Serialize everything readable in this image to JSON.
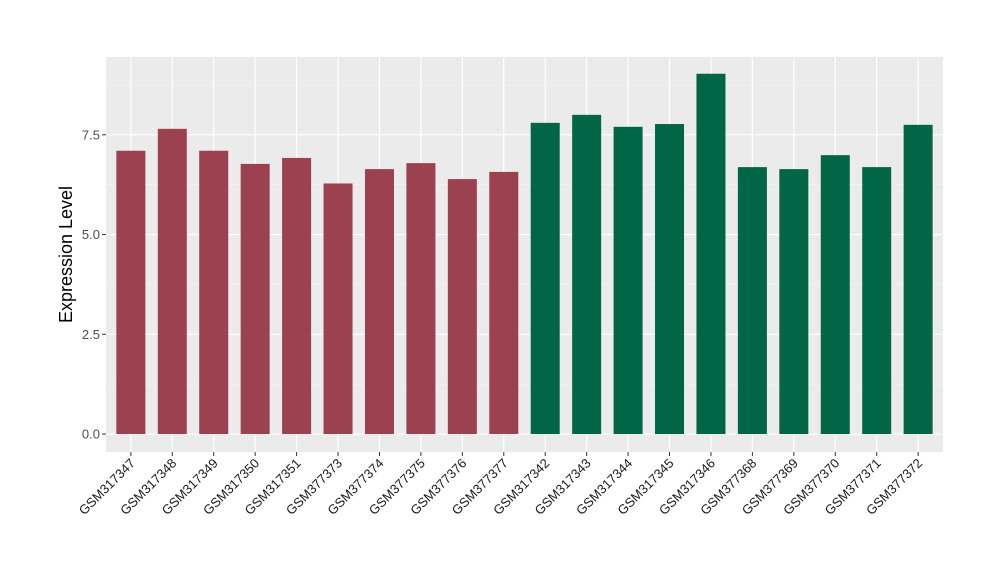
{
  "chart_data": {
    "type": "bar",
    "title": "",
    "xlabel": "",
    "ylabel": "Expression Level",
    "ylim": [
      -0.45,
      9.45
    ],
    "yticks": [
      0.0,
      2.5,
      5.0,
      7.5
    ],
    "ytick_labels": [
      "0.0",
      "2.5",
      "5.0",
      "7.5"
    ],
    "grid": true,
    "legend": "none",
    "categories": [
      "GSM317347",
      "GSM317348",
      "GSM317349",
      "GSM317350",
      "GSM317351",
      "GSM377373",
      "GSM377374",
      "GSM377375",
      "GSM377376",
      "GSM377377",
      "GSM317342",
      "GSM317343",
      "GSM317344",
      "GSM317345",
      "GSM317346",
      "GSM377368",
      "GSM377369",
      "GSM377370",
      "GSM377371",
      "GSM377372"
    ],
    "values": [
      7.1,
      7.65,
      7.1,
      6.77,
      6.92,
      6.28,
      6.64,
      6.79,
      6.39,
      6.57,
      7.8,
      8.0,
      7.7,
      7.77,
      9.03,
      6.69,
      6.64,
      6.99,
      6.69,
      7.75
    ],
    "colors": [
      "#9b4150",
      "#9b4150",
      "#9b4150",
      "#9b4150",
      "#9b4150",
      "#9b4150",
      "#9b4150",
      "#9b4150",
      "#9b4150",
      "#9b4150",
      "#006646",
      "#006646",
      "#006646",
      "#006646",
      "#006646",
      "#006646",
      "#006646",
      "#006646",
      "#006646",
      "#006646"
    ]
  },
  "style": {
    "panel_background": "#ebebeb",
    "grid_major": "#ffffff",
    "grid_minor": "#f5f5f5"
  }
}
